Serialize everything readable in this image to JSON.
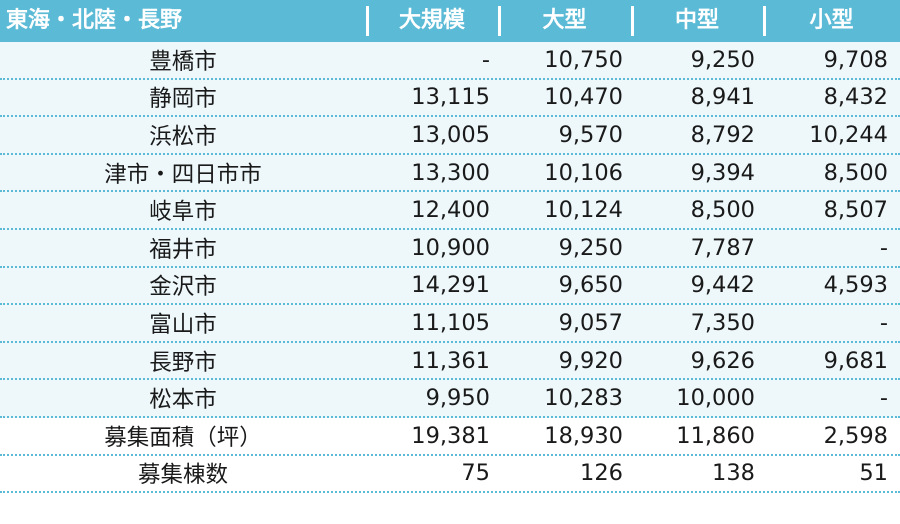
{
  "header": {
    "region": "東海・北陸・長野",
    "col1": "大規模",
    "col2": "大型",
    "col3": "中型",
    "col4": "小型"
  },
  "rows": [
    {
      "city": "豊橋市",
      "v1": "-",
      "v2": "10,750",
      "v3": "9,250",
      "v4": "9,708"
    },
    {
      "city": "静岡市",
      "v1": "13,115",
      "v2": "10,470",
      "v3": "8,941",
      "v4": "8,432"
    },
    {
      "city": "浜松市",
      "v1": "13,005",
      "v2": "9,570",
      "v3": "8,792",
      "v4": "10,244"
    },
    {
      "city": "津市・四日市市",
      "v1": "13,300",
      "v2": "10,106",
      "v3": "9,394",
      "v4": "8,500"
    },
    {
      "city": "岐阜市",
      "v1": "12,400",
      "v2": "10,124",
      "v3": "8,500",
      "v4": "8,507"
    },
    {
      "city": "福井市",
      "v1": "10,900",
      "v2": "9,250",
      "v3": "7,787",
      "v4": "-"
    },
    {
      "city": "金沢市",
      "v1": "14,291",
      "v2": "9,650",
      "v3": "9,442",
      "v4": "4,593"
    },
    {
      "city": "富山市",
      "v1": "11,105",
      "v2": "9,057",
      "v3": "7,350",
      "v4": "-"
    },
    {
      "city": "長野市",
      "v1": "11,361",
      "v2": "9,920",
      "v3": "9,626",
      "v4": "9,681"
    },
    {
      "city": "松本市",
      "v1": "9,950",
      "v2": "10,283",
      "v3": "10,000",
      "v4": "-"
    },
    {
      "city": "募集面積（坪）",
      "v1": "19,381",
      "v2": "18,930",
      "v3": "11,860",
      "v4": "2,598"
    },
    {
      "city": "募集棟数",
      "v1": "75",
      "v2": "126",
      "v3": "138",
      "v4": "51"
    }
  ],
  "colors": {
    "header_bg": "#5bbad6",
    "row_shade": "#eef8fb",
    "dotted_border": "#5bbad6"
  }
}
